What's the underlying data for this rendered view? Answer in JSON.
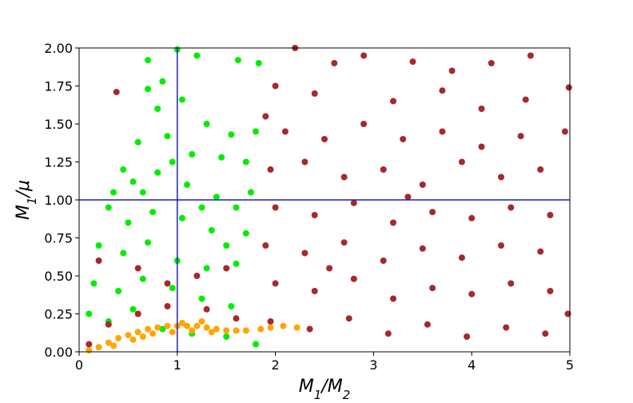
{
  "chart_data": {
    "type": "scatter",
    "title": "",
    "xlabel": "M_1/M_2",
    "ylabel": "M_1/μ",
    "xlim": [
      0,
      5
    ],
    "ylim": [
      0,
      2
    ],
    "xticks": [
      0,
      1,
      2,
      3,
      4,
      5
    ],
    "xtick_labels": [
      "0",
      "1",
      "2",
      "3",
      "4",
      "5"
    ],
    "yticks": [
      0,
      0.25,
      0.5,
      0.75,
      1.0,
      1.25,
      1.5,
      1.75,
      2.0
    ],
    "ytick_labels": [
      "0.00",
      "0.25",
      "0.50",
      "0.75",
      "1.00",
      "1.25",
      "1.50",
      "1.75",
      "2.00"
    ],
    "grid": false,
    "legend": "none",
    "reference_lines": [
      {
        "orientation": "vertical",
        "x": 1,
        "color": "#1f1fb4"
      },
      {
        "orientation": "horizontal",
        "y": 1,
        "color": "#1f1fb4"
      }
    ],
    "series": [
      {
        "color": "#00ee00",
        "points": [
          [
            0.7,
            1.92
          ],
          [
            0.85,
            1.78
          ],
          [
            1.0,
            1.99
          ],
          [
            1.2,
            1.95
          ],
          [
            1.62,
            1.92
          ],
          [
            1.83,
            1.9
          ],
          [
            0.7,
            1.73
          ],
          [
            0.8,
            1.6
          ],
          [
            1.05,
            1.66
          ],
          [
            1.3,
            1.5
          ],
          [
            1.55,
            1.43
          ],
          [
            1.8,
            1.45
          ],
          [
            0.6,
            1.38
          ],
          [
            0.9,
            1.42
          ],
          [
            1.15,
            1.3
          ],
          [
            1.45,
            1.28
          ],
          [
            1.7,
            1.25
          ],
          [
            0.35,
            1.05
          ],
          [
            0.55,
            1.12
          ],
          [
            0.8,
            1.18
          ],
          [
            1.1,
            1.1
          ],
          [
            1.4,
            1.02
          ],
          [
            1.75,
            1.05
          ],
          [
            0.3,
            0.95
          ],
          [
            0.5,
            0.85
          ],
          [
            0.75,
            0.92
          ],
          [
            1.05,
            0.88
          ],
          [
            1.35,
            0.8
          ],
          [
            1.7,
            0.78
          ],
          [
            0.2,
            0.7
          ],
          [
            0.45,
            0.65
          ],
          [
            0.7,
            0.72
          ],
          [
            1.0,
            0.6
          ],
          [
            1.3,
            0.55
          ],
          [
            1.6,
            0.58
          ],
          [
            0.15,
            0.45
          ],
          [
            0.4,
            0.4
          ],
          [
            0.65,
            0.48
          ],
          [
            0.95,
            0.42
          ],
          [
            1.25,
            0.35
          ],
          [
            1.55,
            0.3
          ],
          [
            0.1,
            0.25
          ],
          [
            0.3,
            0.2
          ],
          [
            0.55,
            0.28
          ],
          [
            0.85,
            0.15
          ],
          [
            1.15,
            0.12
          ],
          [
            1.5,
            0.1
          ],
          [
            1.8,
            0.05
          ],
          [
            0.65,
            1.05
          ],
          [
            0.95,
            1.25
          ],
          [
            1.25,
            0.95
          ],
          [
            1.6,
            0.95
          ],
          [
            0.45,
            1.2
          ],
          [
            1.5,
            0.7
          ]
        ]
      },
      {
        "color": "#a52a2a",
        "points": [
          [
            0.38,
            1.71
          ],
          [
            0.2,
            0.6
          ],
          [
            0.6,
            0.55
          ],
          [
            0.9,
            0.45
          ],
          [
            1.2,
            0.5
          ],
          [
            1.5,
            0.55
          ],
          [
            0.3,
            0.18
          ],
          [
            0.6,
            0.25
          ],
          [
            0.9,
            0.3
          ],
          [
            1.3,
            0.28
          ],
          [
            1.6,
            0.22
          ],
          [
            0.1,
            0.05
          ],
          [
            1.9,
            1.55
          ],
          [
            2.2,
            2.0
          ],
          [
            2.6,
            1.9
          ],
          [
            2.9,
            1.95
          ],
          [
            3.4,
            1.91
          ],
          [
            3.8,
            1.85
          ],
          [
            4.2,
            1.9
          ],
          [
            4.6,
            1.95
          ],
          [
            4.99,
            1.74
          ],
          [
            2.0,
            1.75
          ],
          [
            2.4,
            1.7
          ],
          [
            3.2,
            1.65
          ],
          [
            3.7,
            1.72
          ],
          [
            4.1,
            1.6
          ],
          [
            4.55,
            1.66
          ],
          [
            2.1,
            1.45
          ],
          [
            2.5,
            1.4
          ],
          [
            2.9,
            1.5
          ],
          [
            3.3,
            1.4
          ],
          [
            3.7,
            1.45
          ],
          [
            4.1,
            1.35
          ],
          [
            4.5,
            1.42
          ],
          [
            4.95,
            1.45
          ],
          [
            1.95,
            1.2
          ],
          [
            2.3,
            1.25
          ],
          [
            2.7,
            1.15
          ],
          [
            3.1,
            1.2
          ],
          [
            3.5,
            1.1
          ],
          [
            3.9,
            1.25
          ],
          [
            4.3,
            1.15
          ],
          [
            4.7,
            1.2
          ],
          [
            2.0,
            0.95
          ],
          [
            2.4,
            0.9
          ],
          [
            2.8,
            0.98
          ],
          [
            3.2,
            0.85
          ],
          [
            3.6,
            0.92
          ],
          [
            4.0,
            0.88
          ],
          [
            4.4,
            0.95
          ],
          [
            4.8,
            0.9
          ],
          [
            1.9,
            0.7
          ],
          [
            2.3,
            0.65
          ],
          [
            2.7,
            0.72
          ],
          [
            3.1,
            0.6
          ],
          [
            3.5,
            0.68
          ],
          [
            3.9,
            0.62
          ],
          [
            4.3,
            0.7
          ],
          [
            4.7,
            0.66
          ],
          [
            2.0,
            0.45
          ],
          [
            2.4,
            0.4
          ],
          [
            2.8,
            0.48
          ],
          [
            3.2,
            0.35
          ],
          [
            3.6,
            0.42
          ],
          [
            4.0,
            0.38
          ],
          [
            4.4,
            0.45
          ],
          [
            4.8,
            0.4
          ],
          [
            1.95,
            0.2
          ],
          [
            2.35,
            0.15
          ],
          [
            2.75,
            0.22
          ],
          [
            3.15,
            0.12
          ],
          [
            3.55,
            0.18
          ],
          [
            3.95,
            0.1
          ],
          [
            4.35,
            0.16
          ],
          [
            4.75,
            0.12
          ],
          [
            4.98,
            0.25
          ],
          [
            2.55,
            0.55
          ],
          [
            3.35,
            1.02
          ]
        ]
      },
      {
        "color": "#ffa500",
        "points": [
          [
            0.1,
            0.01
          ],
          [
            0.2,
            0.03
          ],
          [
            0.3,
            0.06
          ],
          [
            0.4,
            0.09
          ],
          [
            0.5,
            0.11
          ],
          [
            0.6,
            0.13
          ],
          [
            0.7,
            0.15
          ],
          [
            0.8,
            0.16
          ],
          [
            0.9,
            0.17
          ],
          [
            1.0,
            0.17
          ],
          [
            1.1,
            0.17
          ],
          [
            1.2,
            0.17
          ],
          [
            1.3,
            0.16
          ],
          [
            1.4,
            0.15
          ],
          [
            1.5,
            0.14
          ],
          [
            1.6,
            0.14
          ],
          [
            1.7,
            0.14
          ],
          [
            1.85,
            0.15
          ],
          [
            1.95,
            0.16
          ],
          [
            2.08,
            0.17
          ],
          [
            2.22,
            0.16
          ],
          [
            0.55,
            0.08
          ],
          [
            0.75,
            0.12
          ],
          [
            0.95,
            0.13
          ],
          [
            1.15,
            0.14
          ],
          [
            1.35,
            0.13
          ],
          [
            0.35,
            0.04
          ],
          [
            0.65,
            0.1
          ],
          [
            1.05,
            0.19
          ],
          [
            1.25,
            0.2
          ]
        ]
      }
    ]
  }
}
